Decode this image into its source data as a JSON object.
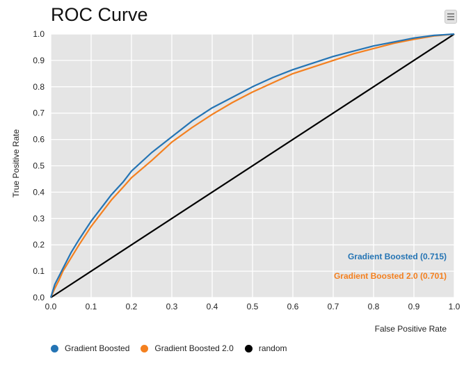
{
  "header": {
    "title": "ROC Curve",
    "menu_icon": "menu-icon"
  },
  "chart_data": {
    "type": "line",
    "title": "ROC Curve",
    "xlabel": "False Positive Rate",
    "ylabel": "True Positive Rate",
    "xlim": [
      0,
      1
    ],
    "ylim": [
      0,
      1
    ],
    "x_ticks": [
      "0.0",
      "0.1",
      "0.2",
      "0.3",
      "0.4",
      "0.5",
      "0.6",
      "0.7",
      "0.8",
      "0.9",
      "1.0"
    ],
    "y_ticks": [
      "0.0",
      "0.1",
      "0.2",
      "0.3",
      "0.4",
      "0.5",
      "0.6",
      "0.7",
      "0.8",
      "0.9",
      "1.0"
    ],
    "grid": true,
    "legend_position": "bottom-left",
    "series": [
      {
        "name": "Gradient Boosted",
        "color": "#2474b4",
        "auc_label": "Gradient Boosted (0.715)",
        "x": [
          0,
          0.01,
          0.02,
          0.03,
          0.05,
          0.07,
          0.1,
          0.13,
          0.15,
          0.18,
          0.2,
          0.25,
          0.3,
          0.35,
          0.4,
          0.45,
          0.5,
          0.55,
          0.6,
          0.65,
          0.7,
          0.75,
          0.8,
          0.85,
          0.9,
          0.95,
          1.0
        ],
        "y": [
          0,
          0.05,
          0.08,
          0.11,
          0.17,
          0.22,
          0.29,
          0.35,
          0.39,
          0.44,
          0.48,
          0.55,
          0.61,
          0.67,
          0.72,
          0.76,
          0.8,
          0.835,
          0.865,
          0.89,
          0.915,
          0.935,
          0.955,
          0.97,
          0.985,
          0.995,
          1.0
        ]
      },
      {
        "name": "Gradient Boosted 2.0",
        "color": "#f4801f",
        "auc_label": "Gradient Boosted 2.0 (0.701)",
        "x": [
          0,
          0.01,
          0.02,
          0.03,
          0.05,
          0.07,
          0.1,
          0.13,
          0.15,
          0.18,
          0.2,
          0.25,
          0.3,
          0.35,
          0.4,
          0.45,
          0.5,
          0.55,
          0.6,
          0.65,
          0.7,
          0.75,
          0.8,
          0.85,
          0.9,
          0.95,
          1.0
        ],
        "y": [
          0,
          0.035,
          0.065,
          0.1,
          0.15,
          0.2,
          0.27,
          0.33,
          0.37,
          0.42,
          0.455,
          0.52,
          0.59,
          0.645,
          0.695,
          0.74,
          0.78,
          0.815,
          0.85,
          0.875,
          0.9,
          0.925,
          0.945,
          0.965,
          0.98,
          0.993,
          1.0
        ]
      },
      {
        "name": "random",
        "color": "#000000",
        "x": [
          0,
          1
        ],
        "y": [
          0,
          1
        ]
      }
    ]
  }
}
